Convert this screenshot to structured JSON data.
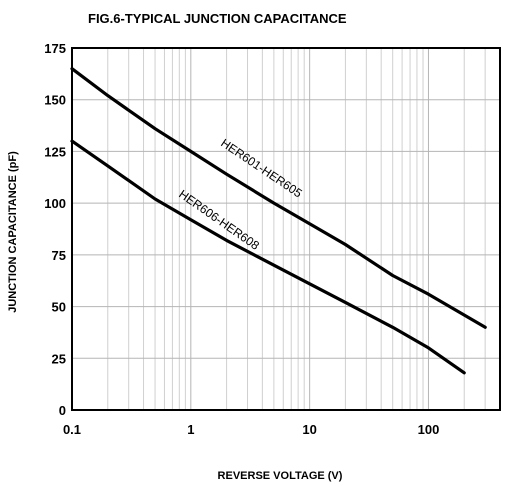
{
  "chart_data": {
    "type": "line",
    "title": "FIG.6-TYPICAL JUNCTION CAPACITANCE",
    "xlabel": "REVERSE VOLTAGE (V)",
    "ylabel": "JUNCTION CAPACITANCE (pF)",
    "xscale": "log",
    "xlim": [
      0.1,
      400
    ],
    "ylim": [
      0,
      175
    ],
    "x_ticks": [
      {
        "value": 0.1,
        "label": "0.1"
      },
      {
        "value": 1,
        "label": "1"
      },
      {
        "value": 10,
        "label": "10"
      },
      {
        "value": 100,
        "label": "100"
      }
    ],
    "y_ticks": [
      {
        "value": 0,
        "label": "0"
      },
      {
        "value": 25,
        "label": "25"
      },
      {
        "value": 50,
        "label": "50"
      },
      {
        "value": 75,
        "label": "75"
      },
      {
        "value": 100,
        "label": "100"
      },
      {
        "value": 125,
        "label": "125"
      },
      {
        "value": 150,
        "label": "150"
      },
      {
        "value": 175,
        "label": "175"
      }
    ],
    "grid": true,
    "legend": "none",
    "series": [
      {
        "name": "HER601-HER605",
        "x": [
          0.1,
          0.2,
          0.5,
          1,
          2,
          5,
          10,
          20,
          50,
          100,
          300
        ],
        "y": [
          165,
          152,
          136,
          125,
          114,
          100,
          90,
          80,
          65,
          56,
          40
        ]
      },
      {
        "name": "HER606-HER608",
        "x": [
          0.1,
          0.2,
          0.5,
          1,
          2,
          5,
          10,
          20,
          50,
          100,
          200
        ],
        "y": [
          130,
          118,
          102,
          92,
          82,
          70,
          61,
          52,
          40,
          30,
          18
        ]
      }
    ]
  }
}
